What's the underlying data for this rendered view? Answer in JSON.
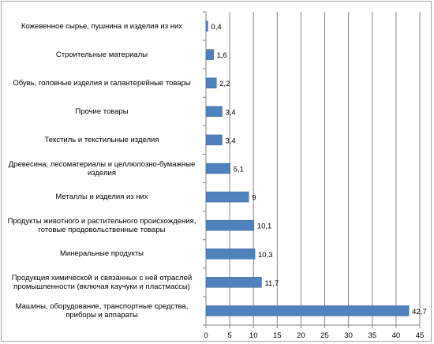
{
  "chart_data": {
    "type": "bar",
    "orientation": "horizontal",
    "categories": [
      "Кожевенное сырье, пушнина и изделия из них",
      "Строительные материалы",
      "Обувь, головные изделия и галантерейные товары",
      "Прочие товары",
      "Текстиль и текстильные изделия",
      "Древесина, лесоматериалы и целлюлозно-бумажные изделия",
      "Металлы и изделия из них",
      "Продукты животного и растительного происхождения, готовые продовольственные товары",
      "Минеральные продукты",
      "Продукция химической и связанных с ней отраслей промышленности (включая каучуки и пластмассы)",
      "Машины, оборудование, транспортные средства, приборы и аппараты"
    ],
    "values": [
      0.4,
      1.6,
      2.2,
      3.4,
      3.4,
      5.1,
      9,
      10.1,
      10.3,
      11.7,
      42.7
    ],
    "value_labels": [
      "0,4",
      "1,6",
      "2,2",
      "3,4",
      "3,4",
      "5,1",
      "9",
      "10,1",
      "10,3",
      "11,7",
      "42,7"
    ],
    "xticks": [
      0,
      5,
      10,
      15,
      20,
      25,
      30,
      35,
      40,
      45
    ],
    "xlim": [
      0,
      45
    ],
    "grid": true,
    "title": "",
    "xlabel": "",
    "ylabel": "",
    "bar_color": "#4f81bd"
  }
}
